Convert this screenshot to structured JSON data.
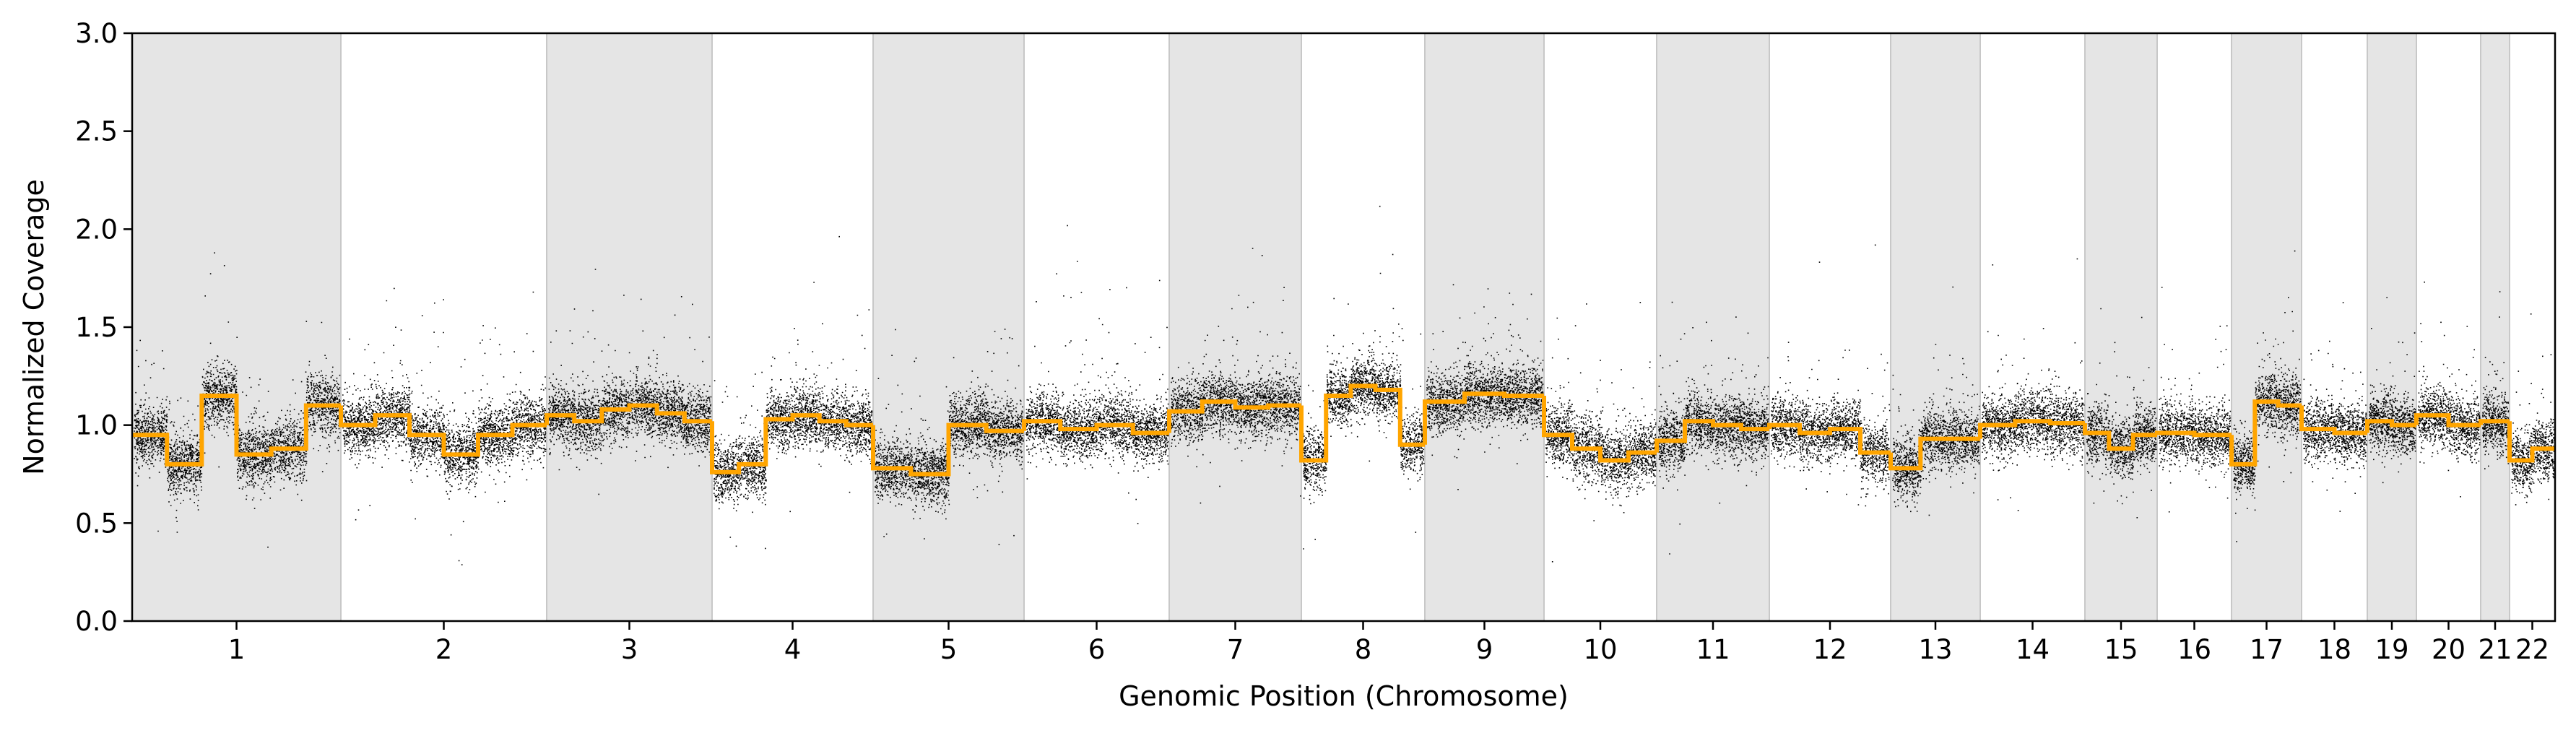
{
  "chart_data": {
    "type": "scatter",
    "title": "",
    "xlabel": "Genomic Position (Chromosome)",
    "ylabel": "Normalized Coverage",
    "ylim": [
      0,
      3.0
    ],
    "yticks": [
      "0.0",
      "0.5",
      "1.0",
      "1.5",
      "2.0",
      "2.5",
      "3.0"
    ],
    "grid": false,
    "legend": "none",
    "colors": {
      "points": "#000000",
      "segments": "#FFA500",
      "shade": "#E5E5E5",
      "shade_edge": "#C8C8C8"
    },
    "chromosomes": [
      {
        "label": "1",
        "shaded": true,
        "mean": 0.97
      },
      {
        "label": "2",
        "shaded": false,
        "mean": 0.96
      },
      {
        "label": "3",
        "shaded": true,
        "mean": 1.07
      },
      {
        "label": "4",
        "shaded": false,
        "mean": 0.98
      },
      {
        "label": "5",
        "shaded": true,
        "mean": 0.87
      },
      {
        "label": "6",
        "shaded": false,
        "mean": 1.0
      },
      {
        "label": "7",
        "shaded": true,
        "mean": 1.1
      },
      {
        "label": "8",
        "shaded": false,
        "mean": 1.08
      },
      {
        "label": "9",
        "shaded": true,
        "mean": 1.14
      },
      {
        "label": "10",
        "shaded": false,
        "mean": 0.86
      },
      {
        "label": "11",
        "shaded": true,
        "mean": 0.99
      },
      {
        "label": "12",
        "shaded": false,
        "mean": 0.97
      },
      {
        "label": "13",
        "shaded": true,
        "mean": 0.9
      },
      {
        "label": "14",
        "shaded": false,
        "mean": 1.01
      },
      {
        "label": "15",
        "shaded": true,
        "mean": 0.93
      },
      {
        "label": "16",
        "shaded": false,
        "mean": 0.96
      },
      {
        "label": "17",
        "shaded": true,
        "mean": 1.06
      },
      {
        "label": "18",
        "shaded": false,
        "mean": 0.97
      },
      {
        "label": "19",
        "shaded": true,
        "mean": 1.01
      },
      {
        "label": "20",
        "shaded": false,
        "mean": 1.04
      },
      {
        "label": "21",
        "shaded": true,
        "mean": 1.02
      },
      {
        "label": "22",
        "shaded": false,
        "mean": 0.85
      }
    ],
    "segments": [
      {
        "chrom": "1",
        "values": [
          0.95,
          0.8,
          1.15,
          0.85,
          0.88,
          1.1
        ]
      },
      {
        "chrom": "2",
        "values": [
          1.0,
          1.05,
          0.95,
          0.85,
          0.95,
          1.0
        ]
      },
      {
        "chrom": "3",
        "values": [
          1.05,
          1.02,
          1.08,
          1.1,
          1.06,
          1.02
        ]
      },
      {
        "chrom": "4",
        "values": [
          0.76,
          0.8,
          1.03,
          1.05,
          1.02,
          1.0
        ]
      },
      {
        "chrom": "5",
        "values": [
          0.78,
          0.75,
          1.0,
          0.97
        ]
      },
      {
        "chrom": "6",
        "values": [
          1.02,
          0.98,
          1.0,
          0.96
        ]
      },
      {
        "chrom": "7",
        "values": [
          1.07,
          1.12,
          1.09,
          1.1
        ]
      },
      {
        "chrom": "8",
        "values": [
          0.82,
          1.15,
          1.2,
          1.18,
          0.9
        ]
      },
      {
        "chrom": "9",
        "values": [
          1.12,
          1.16,
          1.15
        ]
      },
      {
        "chrom": "10",
        "values": [
          0.95,
          0.88,
          0.82,
          0.86
        ]
      },
      {
        "chrom": "11",
        "values": [
          0.92,
          1.02,
          1.0,
          0.98
        ]
      },
      {
        "chrom": "12",
        "values": [
          1.0,
          0.96,
          0.98,
          0.86
        ]
      },
      {
        "chrom": "13",
        "values": [
          0.78,
          0.93,
          0.93
        ]
      },
      {
        "chrom": "14",
        "values": [
          1.0,
          1.02,
          1.01
        ]
      },
      {
        "chrom": "15",
        "values": [
          0.96,
          0.88,
          0.95
        ]
      },
      {
        "chrom": "16",
        "values": [
          0.96,
          0.95
        ]
      },
      {
        "chrom": "17",
        "values": [
          0.8,
          1.12,
          1.1
        ]
      },
      {
        "chrom": "18",
        "values": [
          0.98,
          0.96
        ]
      },
      {
        "chrom": "19",
        "values": [
          1.02,
          1.0
        ]
      },
      {
        "chrom": "20",
        "values": [
          1.05,
          1.0
        ]
      },
      {
        "chrom": "21",
        "values": [
          1.02
        ]
      },
      {
        "chrom": "22",
        "values": [
          0.82,
          0.88
        ]
      }
    ]
  }
}
